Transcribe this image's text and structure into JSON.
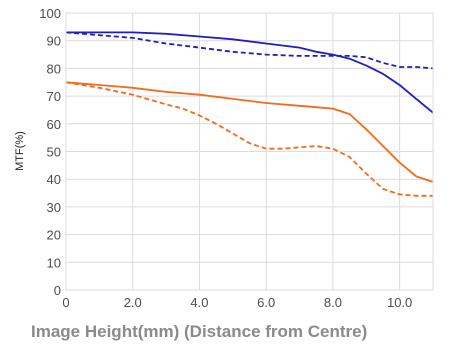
{
  "chart_data": {
    "type": "line",
    "title": "",
    "xlabel": "Image Height(mm) (Distance from Centre)",
    "ylabel": "MTF(%)",
    "xlim": [
      0,
      11
    ],
    "ylim": [
      0,
      100
    ],
    "xticks": [
      "0",
      "2.0",
      "4.0",
      "6.0",
      "8.0",
      "10.0"
    ],
    "yticks": [
      "0",
      "10",
      "20",
      "30",
      "40",
      "50",
      "60",
      "70",
      "80",
      "90",
      "100"
    ],
    "grid": true,
    "legend": "none",
    "series": [
      {
        "color": "#1f1fbf",
        "style": "solid",
        "x": [
          0,
          1,
          2,
          3,
          4,
          5,
          6,
          7,
          7.5,
          8,
          8.5,
          9,
          9.5,
          10,
          10.5,
          11
        ],
        "y": [
          93,
          93,
          93,
          92.5,
          91.5,
          90.5,
          89,
          87.5,
          86,
          85,
          83.5,
          81,
          78,
          74,
          69,
          64
        ]
      },
      {
        "color": "#1f1fbf",
        "style": "dashed",
        "x": [
          0,
          1,
          2,
          3,
          4,
          5,
          6,
          7,
          7.5,
          8,
          8.5,
          9,
          9.5,
          10,
          10.5,
          11
        ],
        "y": [
          93,
          92,
          91,
          89,
          87.5,
          86,
          85,
          84.5,
          84.5,
          84.5,
          84.5,
          84,
          82,
          80.5,
          80.5,
          80
        ]
      },
      {
        "color": "#f26a1b",
        "style": "solid",
        "x": [
          0,
          1,
          2,
          3,
          4,
          5,
          6,
          7,
          7.5,
          8,
          8.5,
          9,
          9.5,
          10,
          10.5,
          11
        ],
        "y": [
          75,
          74,
          73,
          71.5,
          70.5,
          69,
          67.5,
          66.5,
          66,
          65.5,
          63.5,
          58,
          52,
          46,
          41,
          39
        ]
      },
      {
        "color": "#f26a1b",
        "style": "dashed",
        "x": [
          0,
          1,
          2,
          3,
          3.5,
          4,
          4.5,
          5,
          5.5,
          6,
          6.5,
          7,
          7.5,
          8,
          8.5,
          9,
          9.5,
          10,
          10.5,
          11
        ],
        "y": [
          75,
          73,
          70.5,
          67,
          65.5,
          63,
          60,
          56.5,
          53,
          51,
          51,
          51.5,
          52,
          51,
          48,
          42,
          36.5,
          34.5,
          34,
          34
        ]
      }
    ]
  }
}
